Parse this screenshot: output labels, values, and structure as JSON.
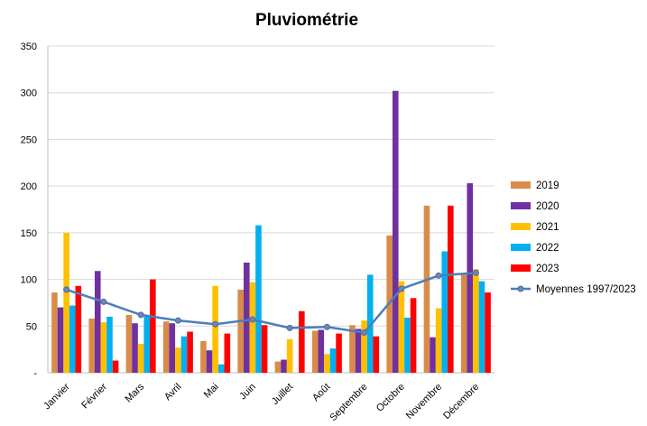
{
  "chart_data": {
    "type": "bar",
    "title": "Pluviométrie",
    "xlabel": "",
    "ylabel": "",
    "ylim": [
      0,
      350
    ],
    "yticks": [
      0,
      50,
      100,
      150,
      200,
      250,
      300,
      350
    ],
    "ytick_labels": [
      "-",
      "50",
      "100",
      "150",
      "200",
      "250",
      "300",
      "350"
    ],
    "grid": true,
    "legend_position": "right",
    "categories": [
      "Janvier",
      "Février",
      "Mars",
      "Avril",
      "Mai",
      "Juin",
      "Juillet",
      "Août",
      "Septembre",
      "Octobre",
      "Novembre",
      "Décembre"
    ],
    "series": [
      {
        "name": "2019",
        "color": "#d98c4a",
        "values": [
          86,
          58,
          62,
          55,
          34,
          89,
          12,
          45,
          51,
          147,
          179,
          105
        ]
      },
      {
        "name": "2020",
        "color": "#7030a0",
        "values": [
          70,
          109,
          53,
          53,
          24,
          118,
          14,
          46,
          47,
          302,
          38,
          203
        ]
      },
      {
        "name": "2021",
        "color": "#ffc000",
        "values": [
          150,
          54,
          31,
          27,
          93,
          97,
          36,
          20,
          56,
          98,
          69,
          111
        ]
      },
      {
        "name": "2022",
        "color": "#00b0f0",
        "values": [
          72,
          60,
          61,
          39,
          9,
          158,
          0,
          26,
          105,
          59,
          130,
          98
        ]
      },
      {
        "name": "2023",
        "color": "#ff0000",
        "values": [
          93,
          13,
          100,
          44,
          42,
          51,
          66,
          42,
          39,
          80,
          179,
          86
        ]
      }
    ],
    "line_series": {
      "name": "Moyennes 1997/2023",
      "color": "#4a7ebb",
      "values": [
        89,
        76,
        62,
        56,
        52,
        57,
        48,
        49,
        43,
        90,
        104,
        107
      ]
    }
  }
}
